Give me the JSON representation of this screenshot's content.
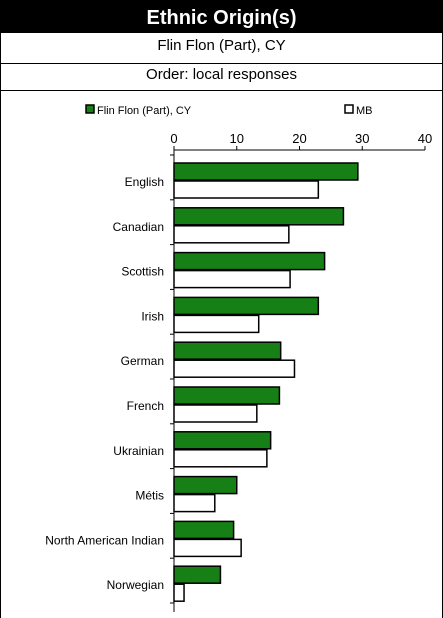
{
  "chart_data": {
    "type": "bar",
    "orientation": "horizontal",
    "title": "Ethnic Origin(s)",
    "subtitle_lines": [
      "Flin Flon (Part), CY",
      "Order: local responses"
    ],
    "categories": [
      "English",
      "Canadian",
      "Scottish",
      "Irish",
      "German",
      "French",
      "Ukrainian",
      "Métis",
      "North American Indian",
      "Norwegian"
    ],
    "series": [
      {
        "name": "Flin Flon (Part), CY",
        "color": "#168016",
        "values": [
          29.3,
          27.0,
          24.0,
          23.0,
          17.0,
          16.8,
          15.4,
          10.0,
          9.5,
          7.4
        ]
      },
      {
        "name": "MB",
        "color": "#ffffff",
        "values": [
          23.0,
          18.3,
          18.5,
          13.5,
          19.2,
          13.2,
          14.8,
          6.5,
          10.7,
          1.6
        ]
      }
    ],
    "xlim": [
      0,
      40
    ],
    "xticks": [
      "0",
      "10",
      "20",
      "30",
      "40"
    ],
    "legend_position": "top",
    "grid": false
  }
}
